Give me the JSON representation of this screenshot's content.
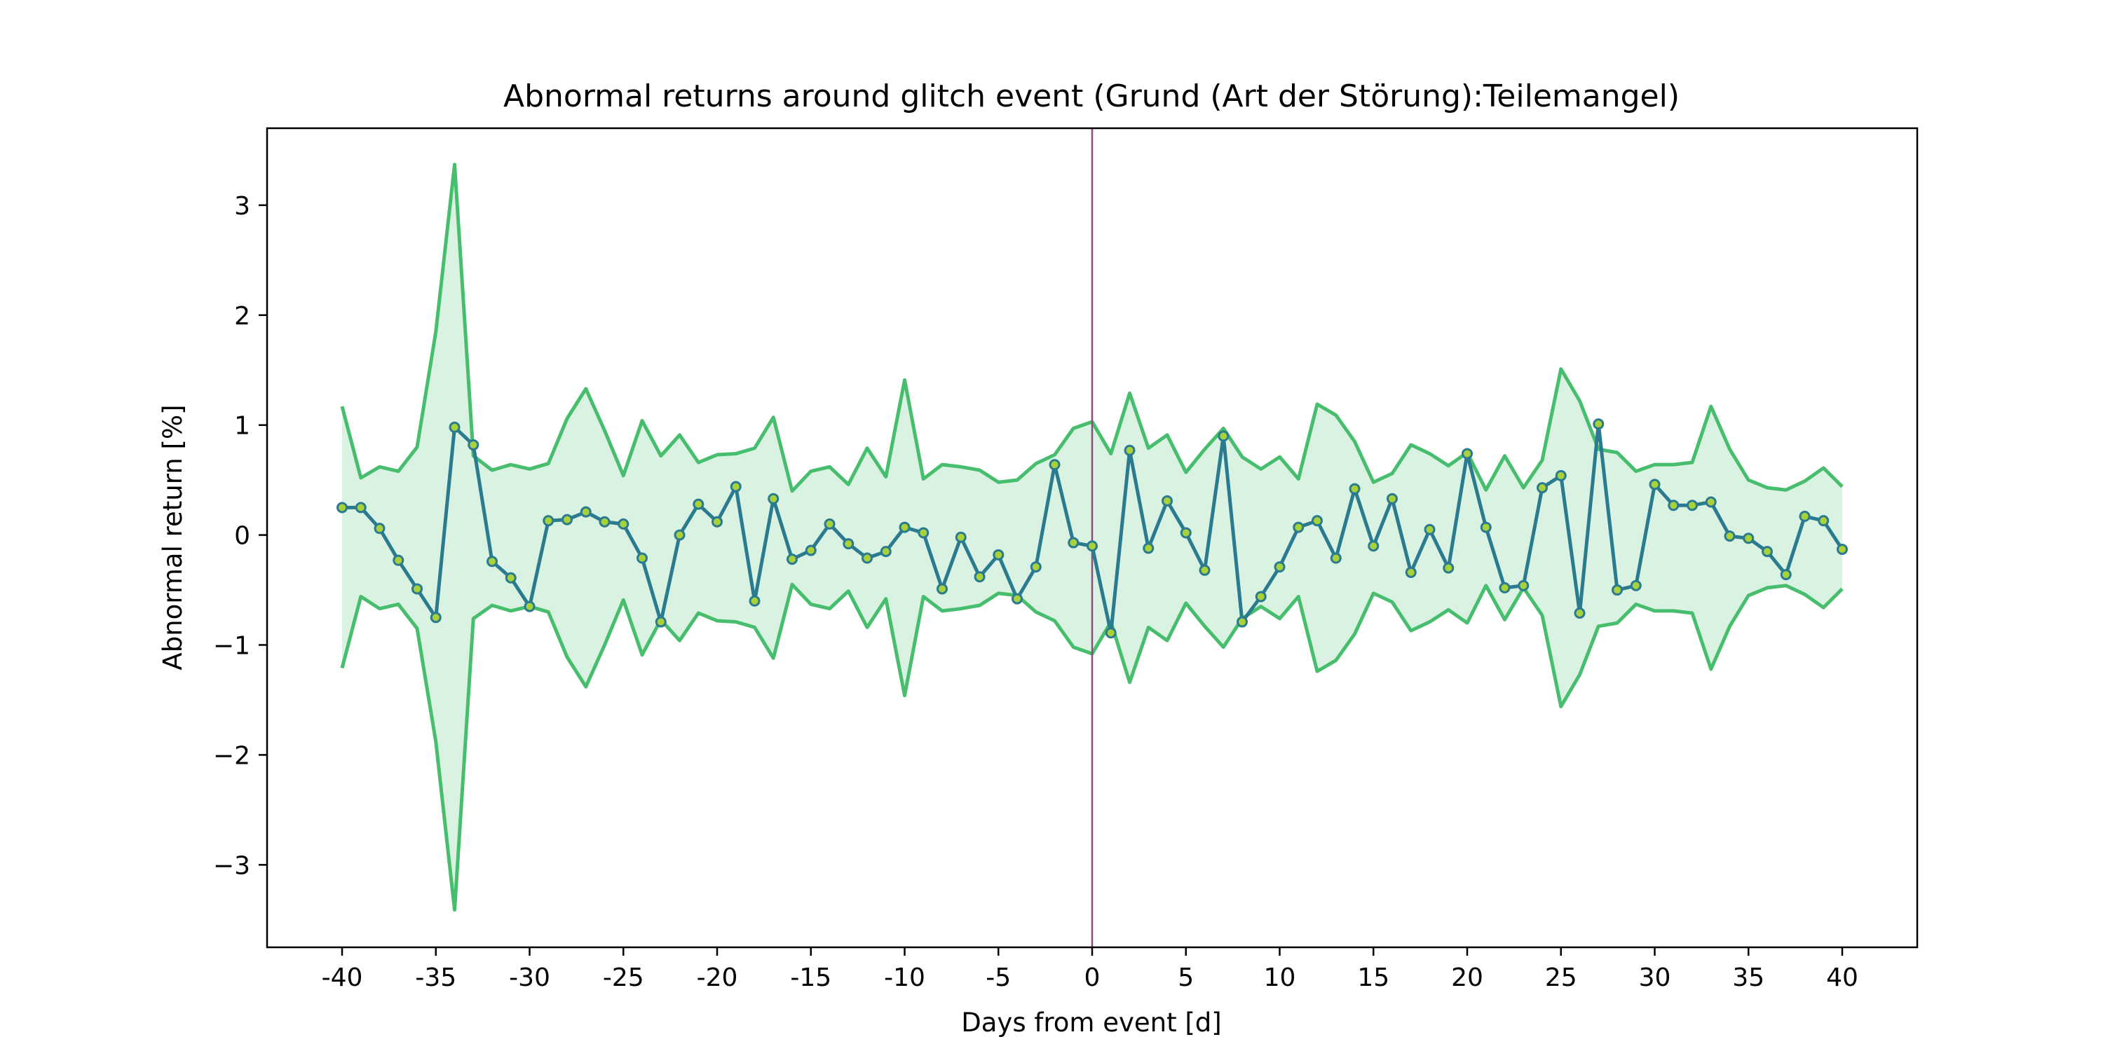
{
  "chart_data": {
    "type": "line",
    "title": "Abnormal returns around glitch event (Grund (Art der Störung):Teilemangel)",
    "xlabel": "Days from event [d]",
    "ylabel": "Abnormal return [%]",
    "xlim": [
      -44,
      44
    ],
    "ylim": [
      -3.75,
      3.7
    ],
    "grid": false,
    "event_day": 0,
    "x_ticks": [
      -40,
      -35,
      -30,
      -25,
      -20,
      -15,
      -10,
      -5,
      0,
      5,
      10,
      15,
      20,
      25,
      30,
      35,
      40
    ],
    "x_tick_labels": [
      "-40",
      "-35",
      "-30",
      "-25",
      "-20",
      "-15",
      "-10",
      "-5",
      "0",
      "5",
      "10",
      "15",
      "20",
      "25",
      "30",
      "35",
      "40"
    ],
    "y_ticks": [
      -3,
      -2,
      -1,
      0,
      1,
      2,
      3
    ],
    "y_tick_labels": [
      "−3",
      "−2",
      "−1",
      "0",
      "1",
      "2",
      "3"
    ],
    "x": [
      -40,
      -39,
      -38,
      -37,
      -36,
      -35,
      -34,
      -33,
      -32,
      -31,
      -30,
      -29,
      -28,
      -27,
      -26,
      -25,
      -24,
      -23,
      -22,
      -21,
      -20,
      -19,
      -18,
      -17,
      -16,
      -15,
      -14,
      -13,
      -12,
      -11,
      -10,
      -9,
      -8,
      -7,
      -6,
      -5,
      -4,
      -3,
      -2,
      -1,
      0,
      1,
      2,
      3,
      4,
      5,
      6,
      7,
      8,
      9,
      10,
      11,
      12,
      13,
      14,
      15,
      16,
      17,
      18,
      19,
      20,
      21,
      22,
      23,
      24,
      25,
      26,
      27,
      28,
      29,
      30,
      31,
      32,
      33,
      34,
      35,
      36,
      37,
      38,
      39,
      40
    ],
    "series": [
      {
        "values": [
          0.25,
          0.25,
          0.06,
          -0.23,
          -0.49,
          -0.75,
          0.98,
          0.82,
          -0.24,
          -0.39,
          -0.65,
          0.13,
          0.14,
          0.21,
          0.12,
          0.1,
          -0.21,
          -0.79,
          0.0,
          0.28,
          0.12,
          0.44,
          -0.6,
          0.33,
          -0.22,
          -0.14,
          0.1,
          -0.08,
          -0.21,
          -0.15,
          0.07,
          0.02,
          -0.49,
          -0.02,
          -0.38,
          -0.18,
          -0.58,
          -0.29,
          0.64,
          -0.07,
          -0.1,
          -0.89,
          0.77,
          -0.12,
          0.31,
          0.02,
          -0.32,
          0.9,
          -0.79,
          -0.56,
          -0.29,
          0.07,
          0.13,
          -0.21,
          0.42,
          -0.1,
          0.33,
          -0.34,
          0.05,
          -0.3,
          0.74,
          0.07,
          -0.48,
          -0.46,
          0.43,
          0.54,
          -0.71,
          1.01,
          -0.5,
          -0.46,
          0.46,
          0.27,
          0.27,
          0.3,
          -0.01,
          -0.03,
          -0.15,
          -0.36,
          0.17,
          0.13,
          -0.13
        ],
        "color": "#2a7b8f",
        "marker_fill": "#a9d23a"
      }
    ],
    "band": {
      "upper": [
        1.17,
        0.52,
        0.62,
        0.58,
        0.8,
        1.85,
        3.37,
        0.72,
        0.59,
        0.64,
        0.6,
        0.65,
        1.06,
        1.33,
        0.95,
        0.54,
        1.04,
        0.72,
        0.91,
        0.66,
        0.73,
        0.74,
        0.79,
        1.07,
        0.4,
        0.58,
        0.62,
        0.46,
        0.79,
        0.53,
        1.41,
        0.51,
        0.64,
        0.62,
        0.59,
        0.48,
        0.5,
        0.65,
        0.73,
        0.97,
        1.03,
        0.74,
        1.29,
        0.79,
        0.91,
        0.57,
        0.78,
        0.97,
        0.71,
        0.6,
        0.71,
        0.51,
        1.19,
        1.09,
        0.85,
        0.48,
        0.56,
        0.82,
        0.74,
        0.63,
        0.75,
        0.41,
        0.72,
        0.43,
        0.68,
        1.51,
        1.22,
        0.78,
        0.75,
        0.58,
        0.64,
        0.64,
        0.66,
        1.17,
        0.78,
        0.5,
        0.43,
        0.41,
        0.49,
        0.61,
        0.44
      ],
      "lower": [
        -1.21,
        -0.56,
        -0.67,
        -0.63,
        -0.85,
        -1.88,
        -3.41,
        -0.76,
        -0.64,
        -0.69,
        -0.65,
        -0.7,
        -1.11,
        -1.38,
        -1.0,
        -0.59,
        -1.09,
        -0.77,
        -0.96,
        -0.71,
        -0.78,
        -0.79,
        -0.84,
        -1.12,
        -0.45,
        -0.63,
        -0.67,
        -0.51,
        -0.84,
        -0.58,
        -1.46,
        -0.56,
        -0.69,
        -0.67,
        -0.64,
        -0.53,
        -0.55,
        -0.7,
        -0.78,
        -1.02,
        -1.08,
        -0.79,
        -1.34,
        -0.84,
        -0.96,
        -0.62,
        -0.83,
        -1.02,
        -0.76,
        -0.65,
        -0.76,
        -0.56,
        -1.24,
        -1.14,
        -0.9,
        -0.53,
        -0.61,
        -0.87,
        -0.79,
        -0.68,
        -0.8,
        -0.46,
        -0.77,
        -0.48,
        -0.73,
        -1.56,
        -1.27,
        -0.83,
        -0.8,
        -0.63,
        -0.69,
        -0.69,
        -0.71,
        -1.22,
        -0.83,
        -0.55,
        -0.48,
        -0.46,
        -0.54,
        -0.66,
        -0.49
      ],
      "line_color": "#47be6d",
      "fill_color": "#d9f2e1"
    },
    "event_line_color": "#8b4f7d"
  }
}
